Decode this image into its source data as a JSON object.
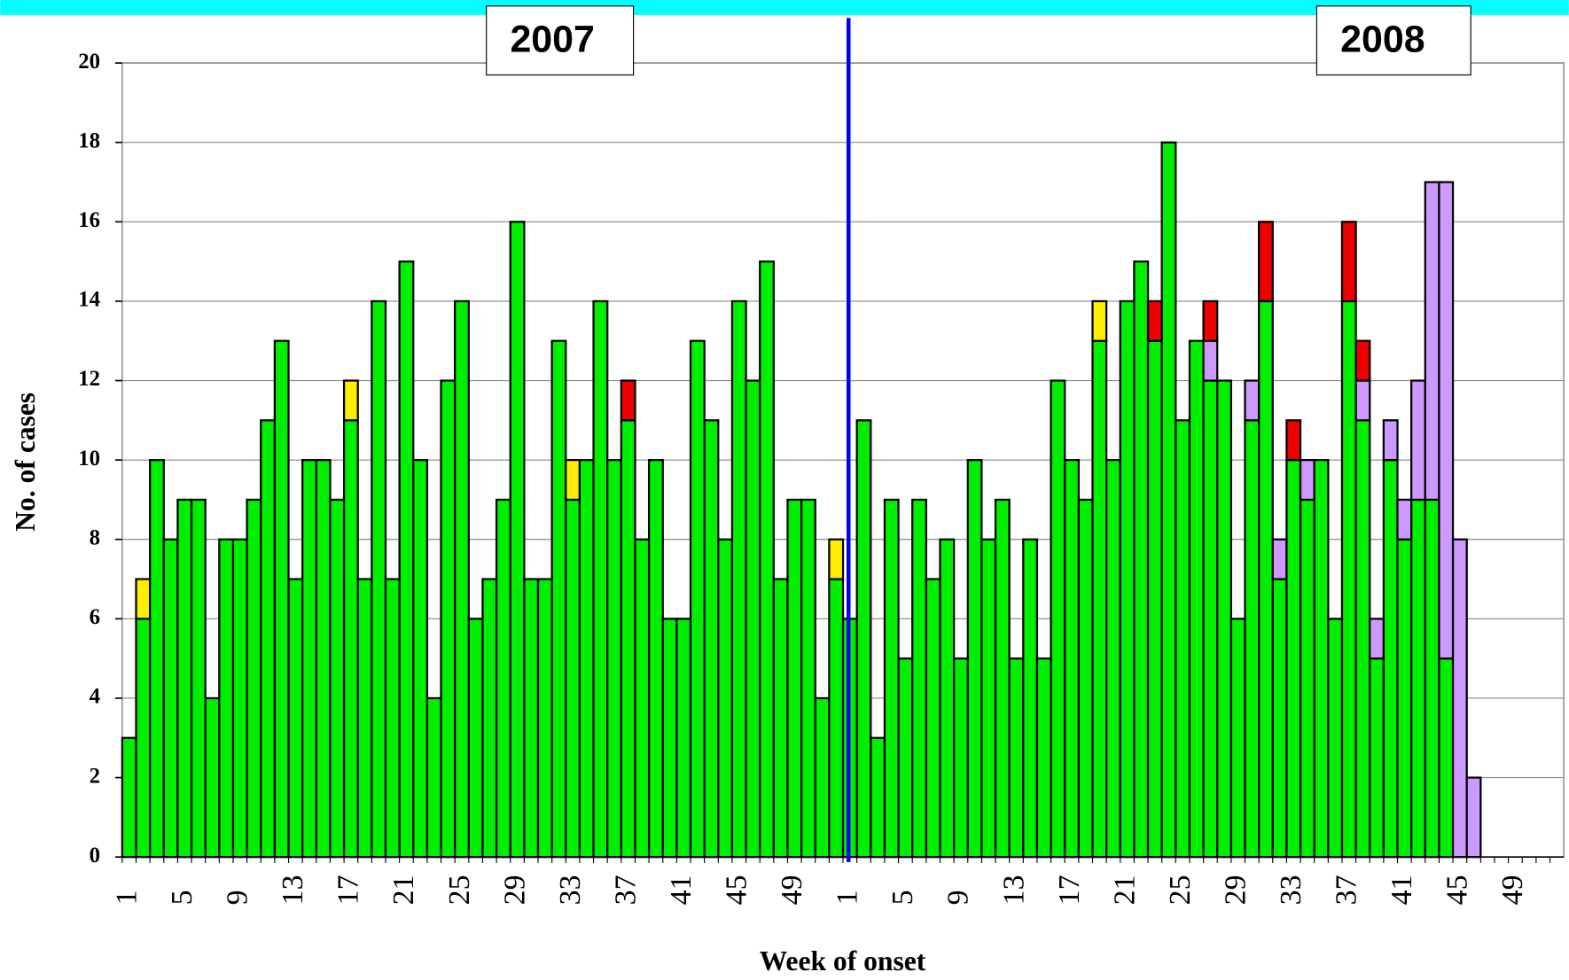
{
  "chart_data": {
    "type": "stacked-bar",
    "y_label": "No. of cases",
    "x_label": "Week of onset",
    "annotations": [
      "2007",
      "2008"
    ],
    "categories": [
      1,
      null,
      null,
      null,
      5,
      null,
      null,
      null,
      9,
      null,
      null,
      null,
      13,
      null,
      null,
      null,
      17,
      null,
      null,
      null,
      21,
      null,
      null,
      null,
      25,
      null,
      null,
      null,
      29,
      null,
      null,
      null,
      33,
      null,
      null,
      null,
      37,
      null,
      null,
      null,
      41,
      null,
      null,
      null,
      45,
      null,
      null,
      null,
      49,
      null,
      null,
      null,
      1,
      null,
      null,
      null,
      5,
      null,
      null,
      null,
      9,
      null,
      null,
      null,
      13,
      null,
      null,
      null,
      17,
      null,
      null,
      null,
      21,
      null,
      null,
      null,
      25,
      null,
      null,
      null,
      29,
      null,
      null,
      null,
      33,
      null,
      null,
      null,
      37,
      null,
      null,
      null,
      41,
      null,
      null,
      null,
      45,
      null,
      null,
      null,
      49,
      null,
      null,
      null
    ],
    "series": [
      {
        "color": "#00ee00",
        "values": [
          3,
          6,
          10,
          8,
          9,
          9,
          4,
          8,
          8,
          9,
          11,
          13,
          7,
          10,
          10,
          9,
          11,
          7,
          14,
          7,
          15,
          10,
          4,
          12,
          14,
          6,
          7,
          9,
          16,
          7,
          7,
          13,
          9,
          10,
          14,
          10,
          11,
          8,
          10,
          6,
          6,
          13,
          11,
          8,
          14,
          12,
          15,
          7,
          9,
          9,
          4,
          7,
          6,
          11,
          3,
          9,
          5,
          9,
          7,
          8,
          5,
          10,
          8,
          9,
          5,
          8,
          5,
          12,
          10,
          9,
          13,
          10,
          14,
          15,
          13,
          18,
          11,
          13,
          12,
          12,
          6,
          11,
          14,
          7,
          10,
          9,
          10,
          6,
          14,
          11,
          5,
          10,
          8,
          9,
          9,
          5,
          0,
          0,
          0,
          0,
          0,
          0,
          0,
          0
        ]
      },
      {
        "color": "#ffee00",
        "values": [
          0,
          1,
          0,
          0,
          0,
          0,
          0,
          0,
          0,
          0,
          0,
          0,
          0,
          0,
          0,
          0,
          1,
          0,
          0,
          0,
          0,
          0,
          0,
          0,
          0,
          0,
          0,
          0,
          0,
          0,
          0,
          0,
          1,
          0,
          0,
          0,
          0,
          0,
          0,
          0,
          0,
          0,
          0,
          0,
          0,
          0,
          0,
          0,
          0,
          0,
          0,
          1,
          0,
          0,
          0,
          0,
          0,
          0,
          0,
          0,
          0,
          0,
          0,
          0,
          0,
          0,
          0,
          0,
          0,
          0,
          1,
          0,
          0,
          0,
          0,
          0,
          0,
          0,
          0,
          0,
          0,
          0,
          0,
          0,
          0,
          0,
          0,
          0,
          0,
          0,
          0,
          0,
          0,
          0,
          0,
          0,
          0,
          0,
          0,
          0,
          0,
          0,
          0,
          0
        ]
      },
      {
        "color": "#cc99ff",
        "values": [
          0,
          0,
          0,
          0,
          0,
          0,
          0,
          0,
          0,
          0,
          0,
          0,
          0,
          0,
          0,
          0,
          0,
          0,
          0,
          0,
          0,
          0,
          0,
          0,
          0,
          0,
          0,
          0,
          0,
          0,
          0,
          0,
          0,
          0,
          0,
          0,
          0,
          0,
          0,
          0,
          0,
          0,
          0,
          0,
          0,
          0,
          0,
          0,
          0,
          0,
          0,
          0,
          0,
          0,
          0,
          0,
          0,
          0,
          0,
          0,
          0,
          0,
          0,
          0,
          0,
          0,
          0,
          0,
          0,
          0,
          0,
          0,
          0,
          0,
          0,
          0,
          0,
          0,
          1,
          0,
          0,
          1,
          0,
          1,
          0,
          1,
          0,
          0,
          0,
          1,
          1,
          1,
          1,
          3,
          8,
          12,
          8,
          2,
          0,
          0,
          0,
          0,
          0,
          0
        ]
      },
      {
        "color": "#ee0000",
        "values": [
          0,
          0,
          0,
          0,
          0,
          0,
          0,
          0,
          0,
          0,
          0,
          0,
          0,
          0,
          0,
          0,
          0,
          0,
          0,
          0,
          0,
          0,
          0,
          0,
          0,
          0,
          0,
          0,
          0,
          0,
          0,
          0,
          0,
          0,
          0,
          0,
          1,
          0,
          0,
          0,
          0,
          0,
          0,
          0,
          0,
          0,
          0,
          0,
          0,
          0,
          0,
          0,
          0,
          0,
          0,
          0,
          0,
          0,
          0,
          0,
          0,
          0,
          0,
          0,
          0,
          0,
          0,
          0,
          0,
          0,
          0,
          0,
          0,
          0,
          1,
          0,
          0,
          0,
          1,
          0,
          0,
          0,
          2,
          0,
          1,
          0,
          0,
          0,
          2,
          1,
          0,
          0,
          0,
          0,
          0,
          0,
          0,
          0,
          0,
          0,
          0,
          0,
          0,
          0
        ]
      }
    ],
    "ylim": [
      0,
      20
    ],
    "yticks": [
      0,
      2,
      4,
      6,
      8,
      10,
      12,
      14,
      16,
      18,
      20
    ],
    "grid": true
  }
}
